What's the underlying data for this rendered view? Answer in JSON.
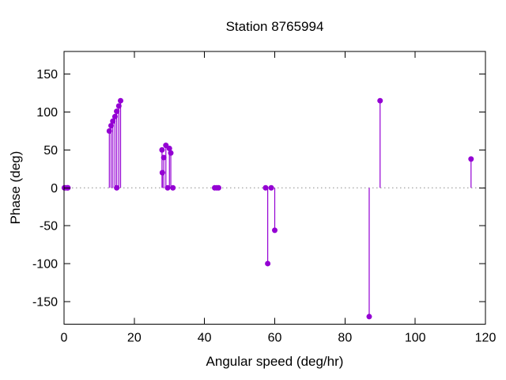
{
  "chart_data": {
    "type": "stem",
    "title": "Station 8765994",
    "xlabel": "Angular speed (deg/hr)",
    "ylabel": "Phase (deg)",
    "xlim": [
      0,
      120
    ],
    "ylim": [
      -180,
      180
    ],
    "xticks": [
      0,
      20,
      40,
      60,
      80,
      100,
      120
    ],
    "yticks": [
      -150,
      -100,
      -50,
      0,
      50,
      100,
      150
    ],
    "grid": false,
    "legend": "none",
    "zero_line_style": "dotted",
    "marker": "filled-circle",
    "colors": {
      "series": "#9400d3",
      "axis": "#000000",
      "zero_line": "#8c8c8c",
      "background": "#ffffff",
      "text": "#000000"
    },
    "points": [
      {
        "x": 0.1,
        "y": 0
      },
      {
        "x": 0.5,
        "y": 0
      },
      {
        "x": 1.0,
        "y": 0
      },
      {
        "x": 1.1,
        "y": 0
      },
      {
        "x": 12.9,
        "y": 75
      },
      {
        "x": 13.4,
        "y": 82
      },
      {
        "x": 13.9,
        "y": 88
      },
      {
        "x": 14.5,
        "y": 94
      },
      {
        "x": 15.0,
        "y": 0
      },
      {
        "x": 15.0,
        "y": 101
      },
      {
        "x": 15.6,
        "y": 108
      },
      {
        "x": 16.1,
        "y": 115
      },
      {
        "x": 27.9,
        "y": 50
      },
      {
        "x": 28.0,
        "y": 20
      },
      {
        "x": 28.4,
        "y": 40
      },
      {
        "x": 29.0,
        "y": 56
      },
      {
        "x": 29.5,
        "y": 0
      },
      {
        "x": 30.0,
        "y": 52
      },
      {
        "x": 30.4,
        "y": 46
      },
      {
        "x": 31.0,
        "y": 0
      },
      {
        "x": 42.9,
        "y": 0
      },
      {
        "x": 43.5,
        "y": 0
      },
      {
        "x": 44.0,
        "y": 0
      },
      {
        "x": 57.4,
        "y": 0
      },
      {
        "x": 58.0,
        "y": -100
      },
      {
        "x": 59.0,
        "y": 0
      },
      {
        "x": 60.0,
        "y": -56
      },
      {
        "x": 86.9,
        "y": -170
      },
      {
        "x": 90.0,
        "y": 115
      },
      {
        "x": 115.9,
        "y": 38
      }
    ]
  }
}
